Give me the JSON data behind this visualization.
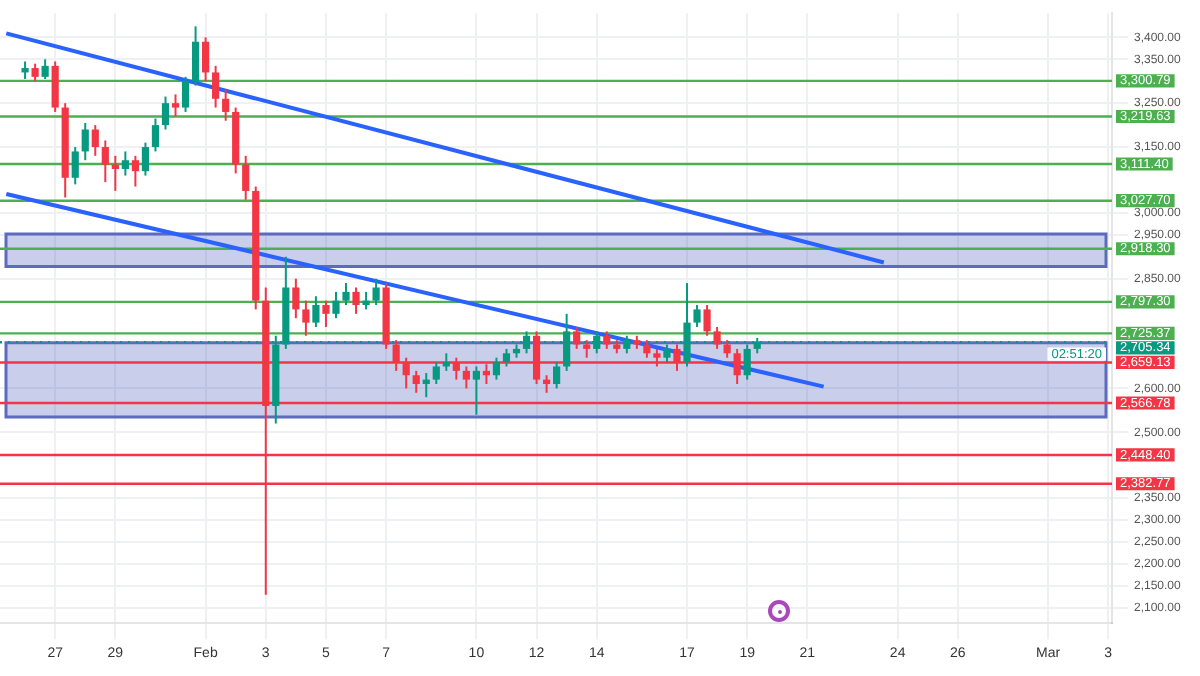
{
  "chart_data": {
    "type": "candlestick",
    "grid": true,
    "legend": false,
    "xlim": [
      "--01-25T04:00",
      "--03-03T03:00"
    ],
    "xticks": [
      {
        "value": "--01-27",
        "label": "27"
      },
      {
        "value": "--01-29",
        "label": "29"
      },
      {
        "value": "--02-01",
        "label": "Feb"
      },
      {
        "value": "--02-03",
        "label": "3"
      },
      {
        "value": "--02-05",
        "label": "5"
      },
      {
        "value": "--02-07",
        "label": "7"
      },
      {
        "value": "--02-10",
        "label": "10"
      },
      {
        "value": "--02-12",
        "label": "12"
      },
      {
        "value": "--02-14",
        "label": "14"
      },
      {
        "value": "--02-17",
        "label": "17"
      },
      {
        "value": "--02-19",
        "label": "19"
      },
      {
        "value": "--02-21",
        "label": "21"
      },
      {
        "value": "--02-24",
        "label": "24"
      },
      {
        "value": "--02-26",
        "label": "26"
      },
      {
        "value": "--03-01",
        "label": "Mar"
      },
      {
        "value": "--03-03",
        "label": "3"
      }
    ],
    "ylim": [
      2065,
      3455
    ],
    "yticks": [
      {
        "value": 2100,
        "label": "2,100.00"
      },
      {
        "value": 2150,
        "label": "2,150.00"
      },
      {
        "value": 2200,
        "label": "2,200.00"
      },
      {
        "value": 2250,
        "label": "2,250.00"
      },
      {
        "value": 2300,
        "label": "2,300.00"
      },
      {
        "value": 2350,
        "label": "2,350.00"
      },
      {
        "value": 2500,
        "label": "2,500.00"
      },
      {
        "value": 2600,
        "label": "2,600.00"
      },
      {
        "value": 2850,
        "label": "2,850.00"
      },
      {
        "value": 2950,
        "label": "2,950.00"
      },
      {
        "value": 3000,
        "label": "3,000.00"
      },
      {
        "value": 3150,
        "label": "3,150.00"
      },
      {
        "value": 3250,
        "label": "3,250.00"
      },
      {
        "value": 3350,
        "label": "3,350.00"
      },
      {
        "value": 3400,
        "label": "3,400.00"
      }
    ],
    "bands": [
      {
        "axis": "y",
        "from": 2878,
        "to": 2952,
        "color": "#5c6bc0"
      },
      {
        "axis": "y",
        "from": 2535,
        "to": 2704,
        "color": "#5c6bc0"
      }
    ],
    "ref_lines": [
      {
        "axis": "y",
        "value": 3300.79,
        "label": "3,300.79",
        "color": "#4caf50"
      },
      {
        "axis": "y",
        "value": 3219.63,
        "label": "3,219.63",
        "color": "#4caf50"
      },
      {
        "axis": "y",
        "value": 3111.4,
        "label": "3,111.40",
        "color": "#4caf50"
      },
      {
        "axis": "y",
        "value": 3027.7,
        "label": "3,027.70",
        "color": "#4caf50"
      },
      {
        "axis": "y",
        "value": 2918.3,
        "label": "2,918.30",
        "color": "#4caf50"
      },
      {
        "axis": "y",
        "value": 2797.3,
        "label": "2,797.30",
        "color": "#4caf50"
      },
      {
        "axis": "y",
        "value": 2725.37,
        "label": "2,725.37",
        "color": "#4caf50"
      },
      {
        "axis": "y",
        "value": 2705.34,
        "label": "2,705.34",
        "color": "#089981",
        "line_style": "dotted"
      },
      {
        "axis": "y",
        "value": 2659.13,
        "label": "2,659.13",
        "color": "#f23645"
      },
      {
        "axis": "y",
        "value": 2566.78,
        "label": "2,566.78",
        "color": "#f23645"
      },
      {
        "axis": "y",
        "value": 2448.4,
        "label": "2,448.40",
        "color": "#f23645"
      },
      {
        "axis": "y",
        "value": 2382.77,
        "label": "2,382.77",
        "color": "#f23645"
      }
    ],
    "annotations": [
      "02:51:20"
    ],
    "series": [
      {
        "type": "line",
        "color": "#2962ff",
        "x": [
          "--01-25T09:00",
          "--02-23T13:00"
        ],
        "values": [
          3409,
          2887
        ]
      },
      {
        "type": "line",
        "color": "#2962ff",
        "x": [
          "--01-25T09:00",
          "--02-21T13:00"
        ],
        "values": [
          3043,
          2604
        ]
      },
      {
        "type": "candlestick",
        "x": [
          "--01-26T00:00",
          "--01-26T08:00",
          "--01-26T16:00",
          "--01-27T00:00",
          "--01-27T08:00",
          "--01-27T16:00",
          "--01-28T00:00",
          "--01-28T08:00",
          "--01-28T16:00",
          "--01-29T00:00",
          "--01-29T08:00",
          "--01-29T16:00",
          "--01-30T00:00",
          "--01-30T08:00",
          "--01-30T16:00",
          "--01-31T00:00",
          "--01-31T08:00",
          "--01-31T16:00",
          "--02-01T00:00",
          "--02-01T08:00",
          "--02-01T16:00",
          "--02-02T00:00",
          "--02-02T08:00",
          "--02-02T16:00",
          "--02-03T00:00",
          "--02-03T08:00",
          "--02-03T16:00",
          "--02-04T00:00",
          "--02-04T08:00",
          "--02-04T16:00",
          "--02-05T00:00",
          "--02-05T08:00",
          "--02-05T16:00",
          "--02-06T00:00",
          "--02-06T08:00",
          "--02-06T16:00",
          "--02-07T00:00",
          "--02-07T08:00",
          "--02-07T16:00",
          "--02-08T00:00",
          "--02-08T08:00",
          "--02-08T16:00",
          "--02-09T00:00",
          "--02-09T08:00",
          "--02-09T16:00",
          "--02-10T00:00",
          "--02-10T08:00",
          "--02-10T16:00",
          "--02-11T00:00",
          "--02-11T08:00",
          "--02-11T16:00",
          "--02-12T00:00",
          "--02-12T08:00",
          "--02-12T16:00",
          "--02-13T00:00",
          "--02-13T08:00",
          "--02-13T16:00",
          "--02-14T00:00",
          "--02-14T08:00",
          "--02-14T16:00",
          "--02-15T00:00",
          "--02-15T08:00",
          "--02-15T16:00",
          "--02-16T00:00",
          "--02-16T08:00",
          "--02-16T16:00",
          "--02-17T00:00",
          "--02-17T08:00",
          "--02-17T16:00",
          "--02-18T00:00",
          "--02-18T08:00",
          "--02-18T16:00",
          "--02-19T00:00",
          "--02-19T08:00"
        ],
        "ohlc": [
          [
            3320,
            3345,
            3305,
            3330
          ],
          [
            3330,
            3340,
            3300,
            3310
          ],
          [
            3310,
            3350,
            3305,
            3335
          ],
          [
            3335,
            3345,
            3230,
            3240
          ],
          [
            3240,
            3250,
            3035,
            3080
          ],
          [
            3080,
            3150,
            3065,
            3140
          ],
          [
            3140,
            3205,
            3120,
            3190
          ],
          [
            3190,
            3200,
            3130,
            3150
          ],
          [
            3150,
            3165,
            3070,
            3110
          ],
          [
            3110,
            3130,
            3050,
            3100
          ],
          [
            3100,
            3140,
            3085,
            3120
          ],
          [
            3120,
            3130,
            3060,
            3095
          ],
          [
            3095,
            3160,
            3085,
            3150
          ],
          [
            3150,
            3215,
            3140,
            3200
          ],
          [
            3200,
            3265,
            3190,
            3250
          ],
          [
            3250,
            3270,
            3220,
            3240
          ],
          [
            3240,
            3310,
            3230,
            3300
          ],
          [
            3300,
            3425,
            3290,
            3390
          ],
          [
            3390,
            3400,
            3300,
            3320
          ],
          [
            3320,
            3335,
            3240,
            3260
          ],
          [
            3260,
            3280,
            3210,
            3230
          ],
          [
            3230,
            3240,
            3090,
            3110
          ],
          [
            3110,
            3130,
            3030,
            3050
          ],
          [
            3050,
            3060,
            2780,
            2800
          ],
          [
            2800,
            2830,
            2130,
            2560
          ],
          [
            2560,
            2720,
            2520,
            2700
          ],
          [
            2700,
            2900,
            2690,
            2830
          ],
          [
            2830,
            2850,
            2760,
            2780
          ],
          [
            2780,
            2800,
            2720,
            2750
          ],
          [
            2750,
            2810,
            2740,
            2790
          ],
          [
            2790,
            2800,
            2740,
            2770
          ],
          [
            2770,
            2820,
            2760,
            2800
          ],
          [
            2800,
            2840,
            2790,
            2820
          ],
          [
            2820,
            2830,
            2770,
            2790
          ],
          [
            2790,
            2820,
            2780,
            2800
          ],
          [
            2800,
            2850,
            2790,
            2830
          ],
          [
            2830,
            2840,
            2690,
            2700
          ],
          [
            2700,
            2710,
            2640,
            2660
          ],
          [
            2660,
            2670,
            2600,
            2630
          ],
          [
            2630,
            2640,
            2590,
            2610
          ],
          [
            2610,
            2635,
            2580,
            2620
          ],
          [
            2620,
            2660,
            2610,
            2650
          ],
          [
            2650,
            2680,
            2640,
            2660
          ],
          [
            2660,
            2670,
            2620,
            2640
          ],
          [
            2640,
            2650,
            2600,
            2620
          ],
          [
            2620,
            2650,
            2540,
            2640
          ],
          [
            2640,
            2655,
            2610,
            2630
          ],
          [
            2630,
            2670,
            2620,
            2660
          ],
          [
            2660,
            2690,
            2650,
            2680
          ],
          [
            2680,
            2700,
            2670,
            2690
          ],
          [
            2690,
            2730,
            2680,
            2720
          ],
          [
            2720,
            2730,
            2610,
            2620
          ],
          [
            2620,
            2630,
            2590,
            2610
          ],
          [
            2610,
            2660,
            2600,
            2650
          ],
          [
            2650,
            2770,
            2640,
            2730
          ],
          [
            2730,
            2740,
            2690,
            2700
          ],
          [
            2700,
            2710,
            2670,
            2690
          ],
          [
            2690,
            2730,
            2680,
            2720
          ],
          [
            2720,
            2730,
            2690,
            2700
          ],
          [
            2700,
            2710,
            2680,
            2690
          ],
          [
            2690,
            2720,
            2680,
            2710
          ],
          [
            2710,
            2720,
            2690,
            2700
          ],
          [
            2700,
            2710,
            2670,
            2680
          ],
          [
            2680,
            2690,
            2650,
            2670
          ],
          [
            2670,
            2700,
            2660,
            2690
          ],
          [
            2690,
            2700,
            2640,
            2660
          ],
          [
            2660,
            2840,
            2650,
            2750
          ],
          [
            2750,
            2790,
            2740,
            2780
          ],
          [
            2780,
            2790,
            2720,
            2730
          ],
          [
            2730,
            2740,
            2690,
            2700
          ],
          [
            2700,
            2710,
            2670,
            2680
          ],
          [
            2680,
            2690,
            2610,
            2630
          ],
          [
            2630,
            2700,
            2620,
            2690
          ],
          [
            2690,
            2715,
            2680,
            2705.34
          ]
        ],
        "colors": [
          "#089981",
          "#f23645",
          "#089981",
          "#f23645",
          "#f23645",
          "#089981",
          "#089981",
          "#f23645",
          "#f23645",
          "#f23645",
          "#089981",
          "#f23645",
          "#089981",
          "#089981",
          "#089981",
          "#f23645",
          "#089981",
          "#089981",
          "#f23645",
          "#f23645",
          "#f23645",
          "#f23645",
          "#f23645",
          "#f23645",
          "#f23645",
          "#089981",
          "#089981",
          "#f23645",
          "#f23645",
          "#089981",
          "#f23645",
          "#089981",
          "#089981",
          "#f23645",
          "#089981",
          "#089981",
          "#f23645",
          "#f23645",
          "#f23645",
          "#f23645",
          "#089981",
          "#089981",
          "#089981",
          "#f23645",
          "#f23645",
          "#089981",
          "#f23645",
          "#089981",
          "#089981",
          "#089981",
          "#089981",
          "#f23645",
          "#f23645",
          "#089981",
          "#089981",
          "#f23645",
          "#f23645",
          "#089981",
          "#f23645",
          "#f23645",
          "#089981",
          "#f23645",
          "#f23645",
          "#f23645",
          "#089981",
          "#f23645",
          "#089981",
          "#089981",
          "#f23645",
          "#f23645",
          "#f23645",
          "#f23645",
          "#089981",
          "#089981"
        ]
      }
    ]
  }
}
